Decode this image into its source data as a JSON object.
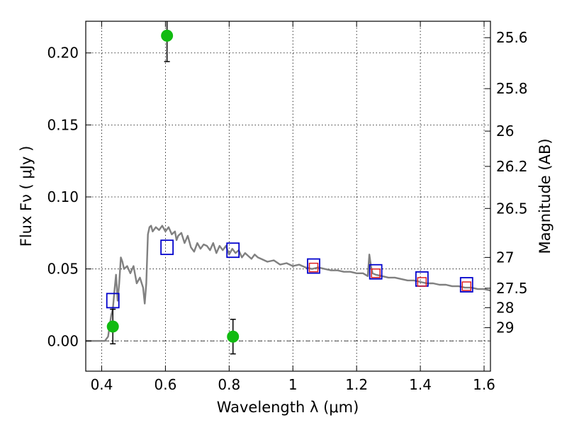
{
  "chart_data": {
    "type": "scatter",
    "xlabel": "Wavelength  λ (μm)",
    "ylabel": "Flux  Fν  ( μJy )",
    "y2label": "Magnitude (AB)",
    "xlim": [
      0.35,
      1.62
    ],
    "ylim": [
      -0.021,
      0.222
    ],
    "grid": true,
    "x_ticks": [
      0.4,
      0.6,
      0.8,
      1,
      1.2,
      1.4,
      1.6
    ],
    "x_tick_labels": [
      "0.4",
      "0.6",
      "0.8",
      "1",
      "1.2",
      "1.4",
      "1.6"
    ],
    "y_ticks": [
      0.0,
      0.05,
      0.1,
      0.15,
      0.2
    ],
    "y_tick_labels": [
      "0.00",
      "0.05",
      "0.10",
      "0.15",
      "0.20"
    ],
    "magnitude_ticks": [
      {
        "label": "25.6",
        "flux": 0.2106
      },
      {
        "label": "25.8",
        "flux": 0.1752
      },
      {
        "label": "26",
        "flux": 0.1457
      },
      {
        "label": "26.2",
        "flux": 0.1212
      },
      {
        "label": "26.5",
        "flux": 0.092
      },
      {
        "label": "27",
        "flux": 0.058
      },
      {
        "label": "27.5",
        "flux": 0.0366
      },
      {
        "label": "28",
        "flux": 0.0231
      },
      {
        "label": "29",
        "flux": 0.0092
      }
    ],
    "series": [
      {
        "kind": "model-spectrum-line",
        "color": "#808080",
        "x": [
          0.35,
          0.4,
          0.41,
          0.42,
          0.43,
          0.435,
          0.44,
          0.445,
          0.45,
          0.455,
          0.46,
          0.465,
          0.47,
          0.48,
          0.49,
          0.5,
          0.51,
          0.52,
          0.53,
          0.535,
          0.54,
          0.545,
          0.55,
          0.555,
          0.56,
          0.57,
          0.58,
          0.59,
          0.6,
          0.61,
          0.62,
          0.63,
          0.635,
          0.64,
          0.65,
          0.66,
          0.67,
          0.68,
          0.69,
          0.7,
          0.71,
          0.72,
          0.73,
          0.74,
          0.75,
          0.76,
          0.77,
          0.78,
          0.79,
          0.8,
          0.81,
          0.82,
          0.83,
          0.84,
          0.85,
          0.86,
          0.87,
          0.88,
          0.89,
          0.9,
          0.92,
          0.94,
          0.96,
          0.98,
          1.0,
          1.02,
          1.04,
          1.06,
          1.08,
          1.1,
          1.12,
          1.14,
          1.16,
          1.18,
          1.2,
          1.22,
          1.235,
          1.24,
          1.245,
          1.25,
          1.26,
          1.28,
          1.3,
          1.32,
          1.34,
          1.36,
          1.38,
          1.4,
          1.42,
          1.44,
          1.46,
          1.48,
          1.5,
          1.52,
          1.54,
          1.56,
          1.58,
          1.6,
          1.62
        ],
        "y": [
          0.0,
          0.0,
          0.0,
          0.003,
          0.018,
          0.022,
          0.035,
          0.046,
          0.028,
          0.04,
          0.058,
          0.055,
          0.05,
          0.052,
          0.047,
          0.052,
          0.04,
          0.044,
          0.037,
          0.026,
          0.04,
          0.074,
          0.079,
          0.08,
          0.076,
          0.079,
          0.077,
          0.08,
          0.076,
          0.079,
          0.074,
          0.076,
          0.07,
          0.073,
          0.075,
          0.068,
          0.073,
          0.065,
          0.062,
          0.068,
          0.064,
          0.067,
          0.066,
          0.063,
          0.068,
          0.061,
          0.066,
          0.063,
          0.066,
          0.06,
          0.064,
          0.061,
          0.063,
          0.058,
          0.061,
          0.059,
          0.057,
          0.06,
          0.058,
          0.057,
          0.055,
          0.056,
          0.053,
          0.054,
          0.052,
          0.053,
          0.051,
          0.05,
          0.051,
          0.05,
          0.049,
          0.049,
          0.048,
          0.048,
          0.047,
          0.047,
          0.045,
          0.06,
          0.052,
          0.047,
          0.046,
          0.045,
          0.044,
          0.044,
          0.043,
          0.042,
          0.042,
          0.041,
          0.04,
          0.04,
          0.039,
          0.039,
          0.038,
          0.038,
          0.037,
          0.037,
          0.036,
          0.036,
          0.035
        ]
      },
      {
        "kind": "model-photometry-squares",
        "color": "#0000cc",
        "x": [
          0.435,
          0.605,
          0.812,
          1.065,
          1.26,
          1.405,
          1.545
        ],
        "y": [
          0.028,
          0.065,
          0.063,
          0.052,
          0.048,
          0.043,
          0.039
        ]
      },
      {
        "kind": "observed-photometry-squares",
        "color": "#dd2222",
        "x": [
          1.065,
          1.26,
          1.405,
          1.545
        ],
        "y": [
          0.051,
          0.047,
          0.041,
          0.038
        ]
      },
      {
        "kind": "observed-photometry-circles",
        "color": "#11bb11",
        "x": [
          0.435,
          0.605,
          0.812
        ],
        "y": [
          0.01,
          0.212,
          0.003
        ],
        "yerr": [
          0.012,
          0.018,
          0.012
        ]
      }
    ]
  }
}
